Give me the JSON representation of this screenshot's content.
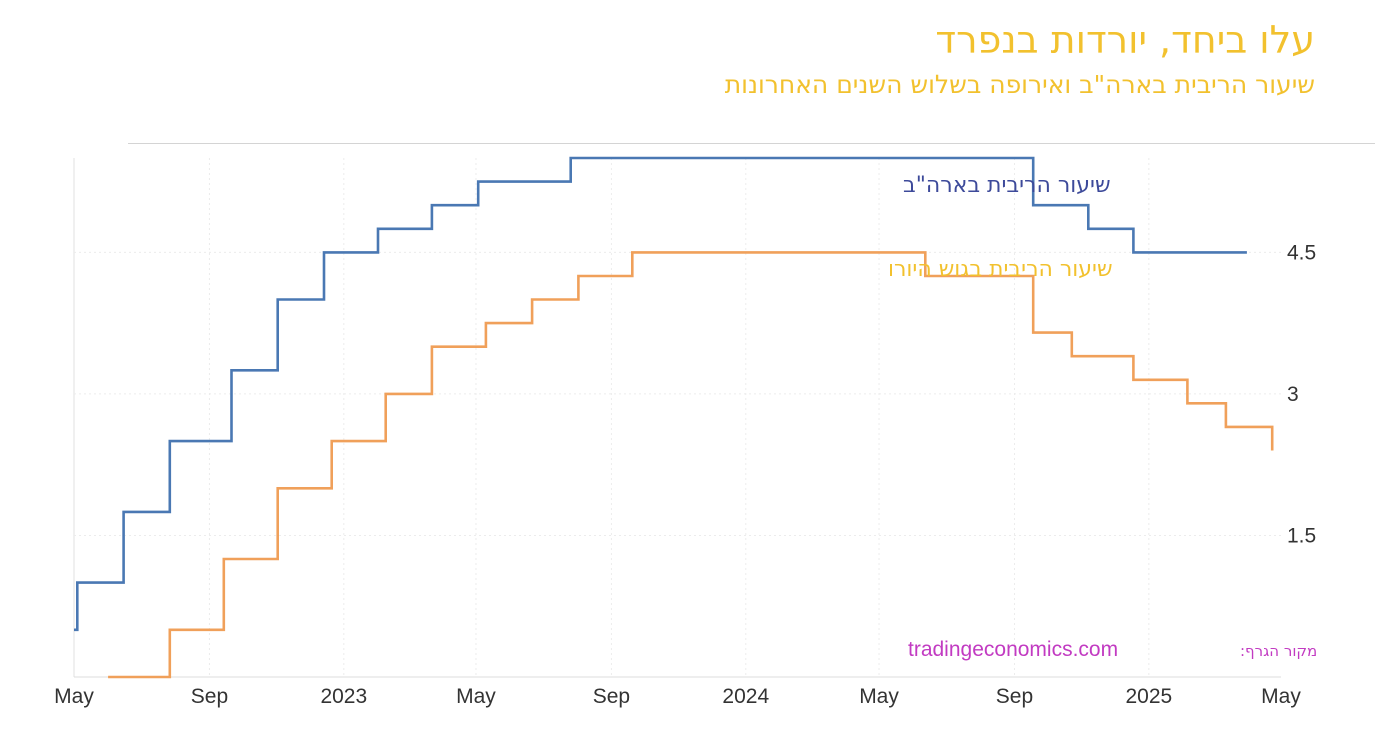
{
  "header": {
    "title": "עלו ביחד, יורדות בנפרד",
    "subtitle": "שיעור הריבית בארה\"ב ואירופה בשלוש השנים האחרונות"
  },
  "source": {
    "prefix": "מקור הגרף:",
    "site": "tradingeconomics.com"
  },
  "chart_data": {
    "type": "line",
    "title": "עלו ביחד, יורדות בנפרד",
    "subtitle": "שיעור הריבית בארה\"ב ואירופה בשלוש השנים האחרונות",
    "xlabel": "",
    "ylabel": "",
    "x_range": [
      "2022-05-01",
      "2025-05-01"
    ],
    "ylim": [
      0,
      5.5
    ],
    "y_ticks": [
      1.5,
      3,
      4.5
    ],
    "x_ticks": [
      {
        "date": "2022-05-01",
        "label": "May"
      },
      {
        "date": "2022-09-01",
        "label": "Sep"
      },
      {
        "date": "2023-01-01",
        "label": "2023"
      },
      {
        "date": "2023-05-01",
        "label": "May"
      },
      {
        "date": "2023-09-01",
        "label": "Sep"
      },
      {
        "date": "2024-01-01",
        "label": "2024"
      },
      {
        "date": "2024-05-01",
        "label": "May"
      },
      {
        "date": "2024-09-01",
        "label": "Sep"
      },
      {
        "date": "2025-01-01",
        "label": "2025"
      },
      {
        "date": "2025-05-01",
        "label": "May"
      }
    ],
    "grid": true,
    "y_axis_position": "right",
    "step": true,
    "series": [
      {
        "name": "שיעור הריבית בארה\"ב",
        "color": "#4a78b3",
        "points": [
          {
            "date": "2022-05-01",
            "y": 0.5
          },
          {
            "date": "2022-05-04",
            "y": 1.0
          },
          {
            "date": "2022-06-15",
            "y": 1.75
          },
          {
            "date": "2022-07-27",
            "y": 2.5
          },
          {
            "date": "2022-09-21",
            "y": 3.25
          },
          {
            "date": "2022-11-02",
            "y": 4.0
          },
          {
            "date": "2022-12-14",
            "y": 4.5
          },
          {
            "date": "2023-02-01",
            "y": 4.75
          },
          {
            "date": "2023-03-22",
            "y": 5.0
          },
          {
            "date": "2023-05-03",
            "y": 5.25
          },
          {
            "date": "2023-07-26",
            "y": 5.5
          },
          {
            "date": "2024-09-18",
            "y": 5.0
          },
          {
            "date": "2024-11-07",
            "y": 4.75
          },
          {
            "date": "2024-12-18",
            "y": 4.5
          },
          {
            "date": "2025-03-31",
            "y": 4.5
          }
        ]
      },
      {
        "name": "שיעור הריבית בגוש היורו",
        "color": "#f0a05a",
        "points": [
          {
            "date": "2022-06-01",
            "y": 0.0
          },
          {
            "date": "2022-07-27",
            "y": 0.5
          },
          {
            "date": "2022-09-14",
            "y": 1.25
          },
          {
            "date": "2022-11-02",
            "y": 2.0
          },
          {
            "date": "2022-12-21",
            "y": 2.5
          },
          {
            "date": "2023-02-08",
            "y": 3.0
          },
          {
            "date": "2023-03-22",
            "y": 3.5
          },
          {
            "date": "2023-05-10",
            "y": 3.75
          },
          {
            "date": "2023-06-21",
            "y": 4.0
          },
          {
            "date": "2023-08-02",
            "y": 4.25
          },
          {
            "date": "2023-09-20",
            "y": 4.5
          },
          {
            "date": "2024-06-12",
            "y": 4.25
          },
          {
            "date": "2024-09-18",
            "y": 3.65
          },
          {
            "date": "2024-10-23",
            "y": 3.4
          },
          {
            "date": "2024-12-18",
            "y": 3.15
          },
          {
            "date": "2025-02-05",
            "y": 2.9
          },
          {
            "date": "2025-03-12",
            "y": 2.65
          },
          {
            "date": "2025-04-23",
            "y": 2.4
          }
        ]
      }
    ]
  }
}
